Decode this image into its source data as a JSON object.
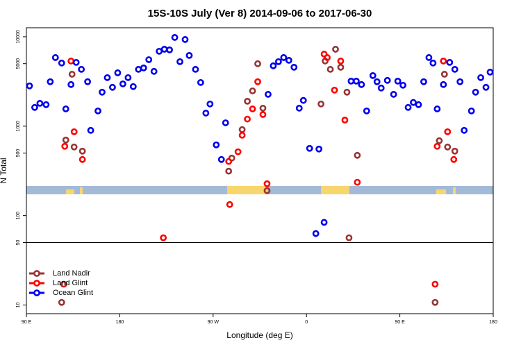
{
  "chart_data": {
    "type": "scatter",
    "title": "15S-10S July (Ver 8)   2014-09-06 to 2017-06-30",
    "x_label": "Longitude (deg E)",
    "y_label": "N Total",
    "xlim": [
      90,
      540
    ],
    "xticks": [
      {
        "value": 90,
        "label": "90 E"
      },
      {
        "value": 180,
        "label": "180"
      },
      {
        "value": 270,
        "label": "90 W"
      },
      {
        "value": 360,
        "label": "0"
      },
      {
        "value": 450,
        "label": "90 E"
      },
      {
        "value": 540,
        "label": "180"
      }
    ],
    "ylim": [
      8,
      12600
    ],
    "log_y": true,
    "yticks": [
      10,
      50,
      100,
      500,
      1000,
      5000,
      10000
    ],
    "reference_line": 50,
    "legend": "bottom-left",
    "series": [
      {
        "name": "Land Nadir",
        "color": "#993333",
        "x": [
          128,
          134,
          136,
          144,
          285,
          288,
          298,
          303,
          308,
          313,
          318,
          322,
          374,
          378,
          383,
          388,
          393,
          399,
          401,
          409,
          124,
          484,
          488,
          493,
          496,
          503
        ],
        "values": [
          700,
          3810,
          585,
          526,
          314,
          440,
          915,
          1900,
          2480,
          4990,
          1590,
          190,
          1770,
          5350,
          4320,
          7250,
          4560,
          2400,
          56.5,
          472,
          10.7,
          10.7,
          687,
          3810,
          585,
          526
        ]
      },
      {
        "name": "Land Glint",
        "color": "#ff0000",
        "x": [
          127,
          133,
          136,
          144,
          222,
          286,
          285,
          294,
          298,
          303,
          308,
          313,
          318,
          322,
          377,
          380,
          387,
          393,
          397,
          409,
          126,
          484,
          486,
          492,
          496,
          502
        ],
        "values": [
          596,
          5350,
          866,
          424,
          56.5,
          133,
          403,
          517,
          792,
          1200,
          1560,
          3140,
          1350,
          227,
          6400,
          5850,
          2530,
          5350,
          1170,
          236,
          17.1,
          17.1,
          596,
          5350,
          866,
          424
        ]
      },
      {
        "name": "Ocean Glint",
        "color": "#0000ee",
        "x": [
          93,
          98,
          103,
          109,
          113,
          118,
          124,
          128,
          133,
          138,
          143,
          149,
          152,
          159,
          163,
          168,
          173,
          178,
          183,
          188,
          193,
          198,
          203,
          208,
          213,
          218,
          223,
          228,
          233,
          238,
          243,
          247,
          253,
          258,
          263,
          267,
          273,
          278,
          282,
          323,
          328,
          333,
          338,
          343,
          348,
          353,
          357,
          363,
          372,
          377,
          369,
          403,
          408,
          413,
          418,
          424,
          428,
          432,
          438,
          444,
          448,
          453,
          458,
          463,
          468,
          473,
          478,
          482,
          486,
          492,
          498,
          503,
          508,
          512,
          519,
          523,
          528,
          533,
          537
        ],
        "values": [
          2820,
          1620,
          1800,
          1740,
          3140,
          5850,
          5080,
          1560,
          2920,
          5170,
          4320,
          3140,
          898,
          1480,
          2400,
          3490,
          2720,
          3950,
          2970,
          3490,
          2770,
          4320,
          4480,
          5540,
          4100,
          6880,
          7250,
          7130,
          9820,
          5260,
          9310,
          6180,
          4320,
          3080,
          1400,
          1770,
          618,
          424,
          1090,
          2270,
          4730,
          5260,
          5850,
          5450,
          4560,
          1590,
          1940,
          565,
          555,
          84,
          63,
          3190,
          3190,
          2920,
          1480,
          3680,
          3140,
          2670,
          3250,
          2270,
          3190,
          2870,
          1620,
          1840,
          1740,
          3140,
          5850,
          5080,
          1560,
          2920,
          5170,
          4320,
          3140,
          898,
          1480,
          2400,
          3490,
          2720,
          4020
        ]
      }
    ]
  }
}
